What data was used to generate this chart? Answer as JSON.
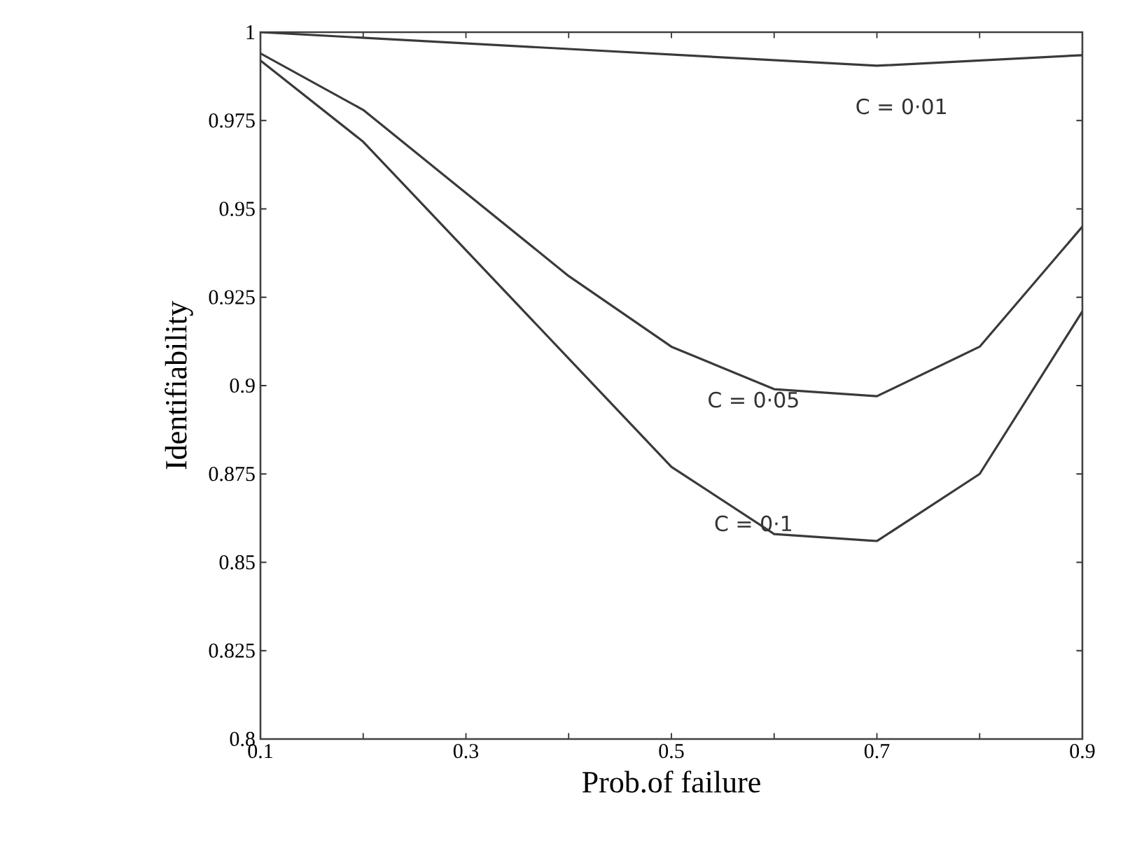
{
  "chart_data": {
    "type": "line",
    "xlabel": "Prob.of failure",
    "ylabel": "Identifiability",
    "xlim": [
      0.1,
      0.9
    ],
    "ylim": [
      0.8,
      1
    ],
    "xticks": [
      0.1,
      {
        "value": 0.2,
        "label": null
      },
      0.3,
      {
        "value": 0.4,
        "label": null
      },
      0.5,
      {
        "value": 0.6,
        "label": null
      },
      0.7,
      {
        "value": 0.8,
        "label": null
      },
      0.9
    ],
    "yticks": [
      0.8,
      0.825,
      0.85,
      0.875,
      0.9,
      0.925,
      0.95,
      0.975,
      1
    ],
    "grid": false,
    "line_style": "solid",
    "series": [
      {
        "color": "#3a3a3a",
        "x": [
          0.1,
          0.7,
          0.9
        ],
        "values": [
          1.0,
          0.9905,
          0.9935
        ]
      },
      {
        "color": "#3a3a3a",
        "x": [
          0.1,
          0.2,
          0.4,
          0.5,
          0.6,
          0.7,
          0.8,
          0.9
        ],
        "values": [
          0.994,
          0.978,
          0.931,
          0.911,
          0.899,
          0.897,
          0.911,
          0.945
        ]
      },
      {
        "color": "#3a3a3a",
        "x": [
          0.1,
          0.2,
          0.5,
          0.6,
          0.7,
          0.8,
          0.9
        ],
        "values": [
          0.992,
          0.969,
          0.877,
          0.858,
          0.856,
          0.875,
          0.921
        ]
      }
    ],
    "annotations": [
      "C = 0·01",
      "C = 0·05",
      "C = 0·1"
    ]
  }
}
